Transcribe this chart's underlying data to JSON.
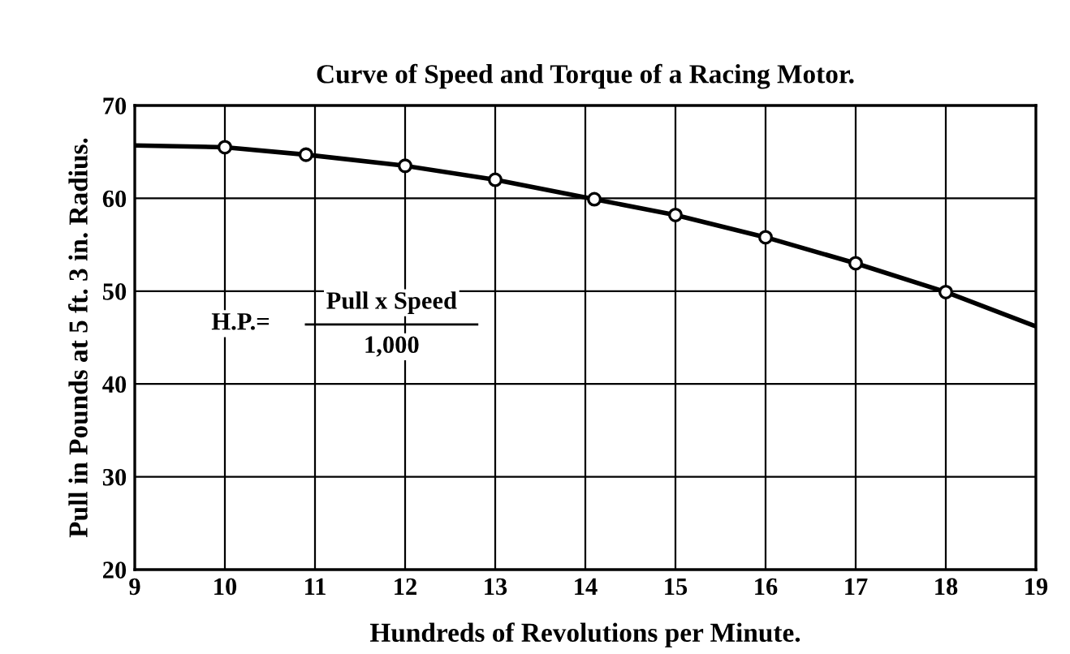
{
  "chart_data": {
    "type": "line",
    "title": "Curve of Speed and Torque of a Racing Motor.",
    "xlabel": "Hundreds of Revolutions per Minute.",
    "ylabel": "Pull in Pounds at 5 ft. 3 in. Radius.",
    "series": [
      {
        "color": "#000000",
        "marker": "none",
        "x": [
          9,
          10,
          10.9,
          12,
          13,
          14.1,
          15,
          16,
          17,
          18,
          19
        ],
        "values": [
          65.7,
          65.5,
          64.7,
          63.5,
          62,
          59.9,
          58.2,
          55.8,
          53,
          49.9,
          46.2
        ]
      },
      {
        "type": "scatter",
        "color": "#000000",
        "marker": "circle",
        "x": [
          10,
          10.9,
          12,
          13,
          14.1,
          15,
          16,
          17,
          18
        ],
        "values": [
          65.5,
          64.7,
          63.5,
          62,
          59.9,
          58.2,
          55.8,
          53,
          49.9
        ]
      }
    ],
    "xlim": [
      9,
      19
    ],
    "xticks": [
      9,
      10,
      11,
      12,
      13,
      14,
      15,
      16,
      17,
      18,
      19
    ],
    "ylim": [
      20,
      70
    ],
    "yticks": [
      20,
      30,
      40,
      50,
      60,
      70
    ],
    "grid": true,
    "legend": false,
    "annotations": [
      "H.P.=",
      "Pull x Speed",
      "1,000"
    ]
  }
}
